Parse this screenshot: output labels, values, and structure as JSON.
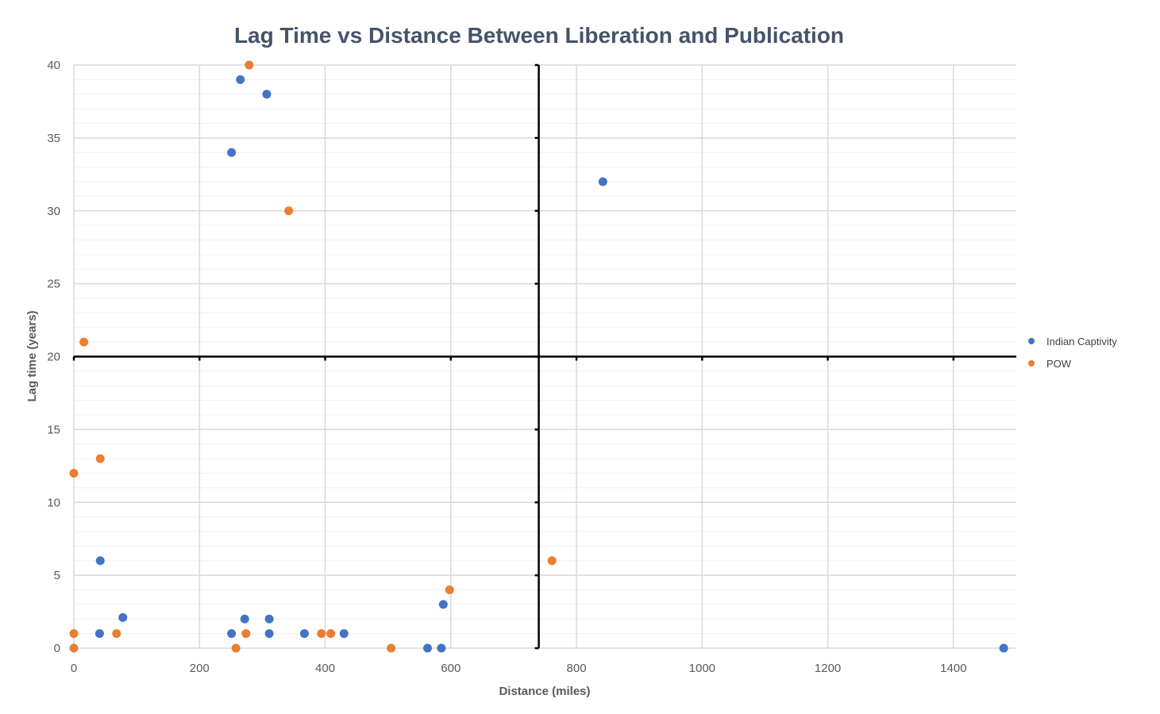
{
  "chart_data": {
    "type": "scatter",
    "title": "Lag Time vs Distance Between Liberation and Publication",
    "xlabel": "Distance (miles)",
    "ylabel": "Lag time (years)",
    "xlim": [
      0,
      1500
    ],
    "ylim": [
      0,
      40
    ],
    "x_ticks": [
      0,
      200,
      400,
      600,
      800,
      1000,
      1200,
      1400
    ],
    "y_ticks": [
      0,
      5,
      10,
      15,
      20,
      25,
      30,
      35,
      40
    ],
    "grid": true,
    "legend_position": "right",
    "crosshair": {
      "x": 740,
      "y": 20
    },
    "series": [
      {
        "name": "Indian Captivity",
        "color": "#4472c4",
        "points": [
          {
            "x": 265,
            "y": 39
          },
          {
            "x": 307,
            "y": 38
          },
          {
            "x": 251,
            "y": 34
          },
          {
            "x": 842,
            "y": 32
          },
          {
            "x": 42,
            "y": 6
          },
          {
            "x": 78,
            "y": 2.1
          },
          {
            "x": 272,
            "y": 2
          },
          {
            "x": 311,
            "y": 2
          },
          {
            "x": 588,
            "y": 3
          },
          {
            "x": 41,
            "y": 1
          },
          {
            "x": 251,
            "y": 1
          },
          {
            "x": 311,
            "y": 1
          },
          {
            "x": 367,
            "y": 1
          },
          {
            "x": 430,
            "y": 1
          },
          {
            "x": 563,
            "y": 0
          },
          {
            "x": 585,
            "y": 0
          },
          {
            "x": 1480,
            "y": 0
          }
        ]
      },
      {
        "name": "POW",
        "color": "#ed7d31",
        "points": [
          {
            "x": 279,
            "y": 40
          },
          {
            "x": 342,
            "y": 30
          },
          {
            "x": 16,
            "y": 21
          },
          {
            "x": 42,
            "y": 13
          },
          {
            "x": 0,
            "y": 12
          },
          {
            "x": 761,
            "y": 6
          },
          {
            "x": 598,
            "y": 4
          },
          {
            "x": 0,
            "y": 1
          },
          {
            "x": 68,
            "y": 1
          },
          {
            "x": 274,
            "y": 1
          },
          {
            "x": 394,
            "y": 1
          },
          {
            "x": 409,
            "y": 1
          },
          {
            "x": 0,
            "y": 0
          },
          {
            "x": 258,
            "y": 0
          },
          {
            "x": 505,
            "y": 0
          }
        ]
      }
    ]
  }
}
